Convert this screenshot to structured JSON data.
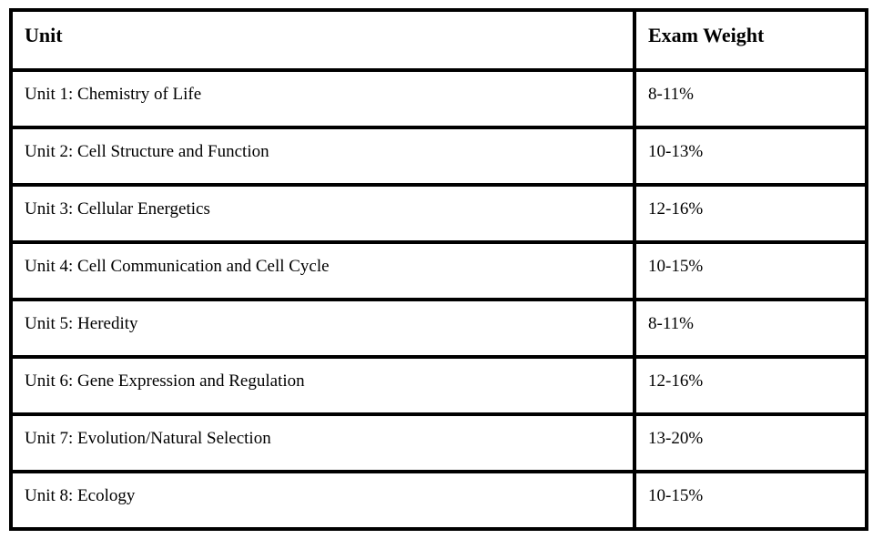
{
  "page": {
    "background_color": "#ffffff",
    "border_color": "#000000",
    "text_color": "#000000"
  },
  "table": {
    "columns": [
      {
        "label": "Unit"
      },
      {
        "label": "Exam Weight"
      }
    ],
    "rows": [
      {
        "unit": "Unit 1: Chemistry of Life",
        "weight": "8-11%"
      },
      {
        "unit": "Unit 2: Cell Structure and Function",
        "weight": "10-13%"
      },
      {
        "unit": "Unit 3: Cellular Energetics",
        "weight": "12-16%"
      },
      {
        "unit": "Unit 4: Cell Communication and Cell Cycle",
        "weight": "10-15%"
      },
      {
        "unit": "Unit 5: Heredity",
        "weight": "8-11%"
      },
      {
        "unit": "Unit 6: Gene Expression and Regulation",
        "weight": "12-16%"
      },
      {
        "unit": "Unit 7: Evolution/Natural Selection",
        "weight": "13-20%"
      },
      {
        "unit": "Unit 8: Ecology",
        "weight": "10-15%"
      }
    ]
  }
}
